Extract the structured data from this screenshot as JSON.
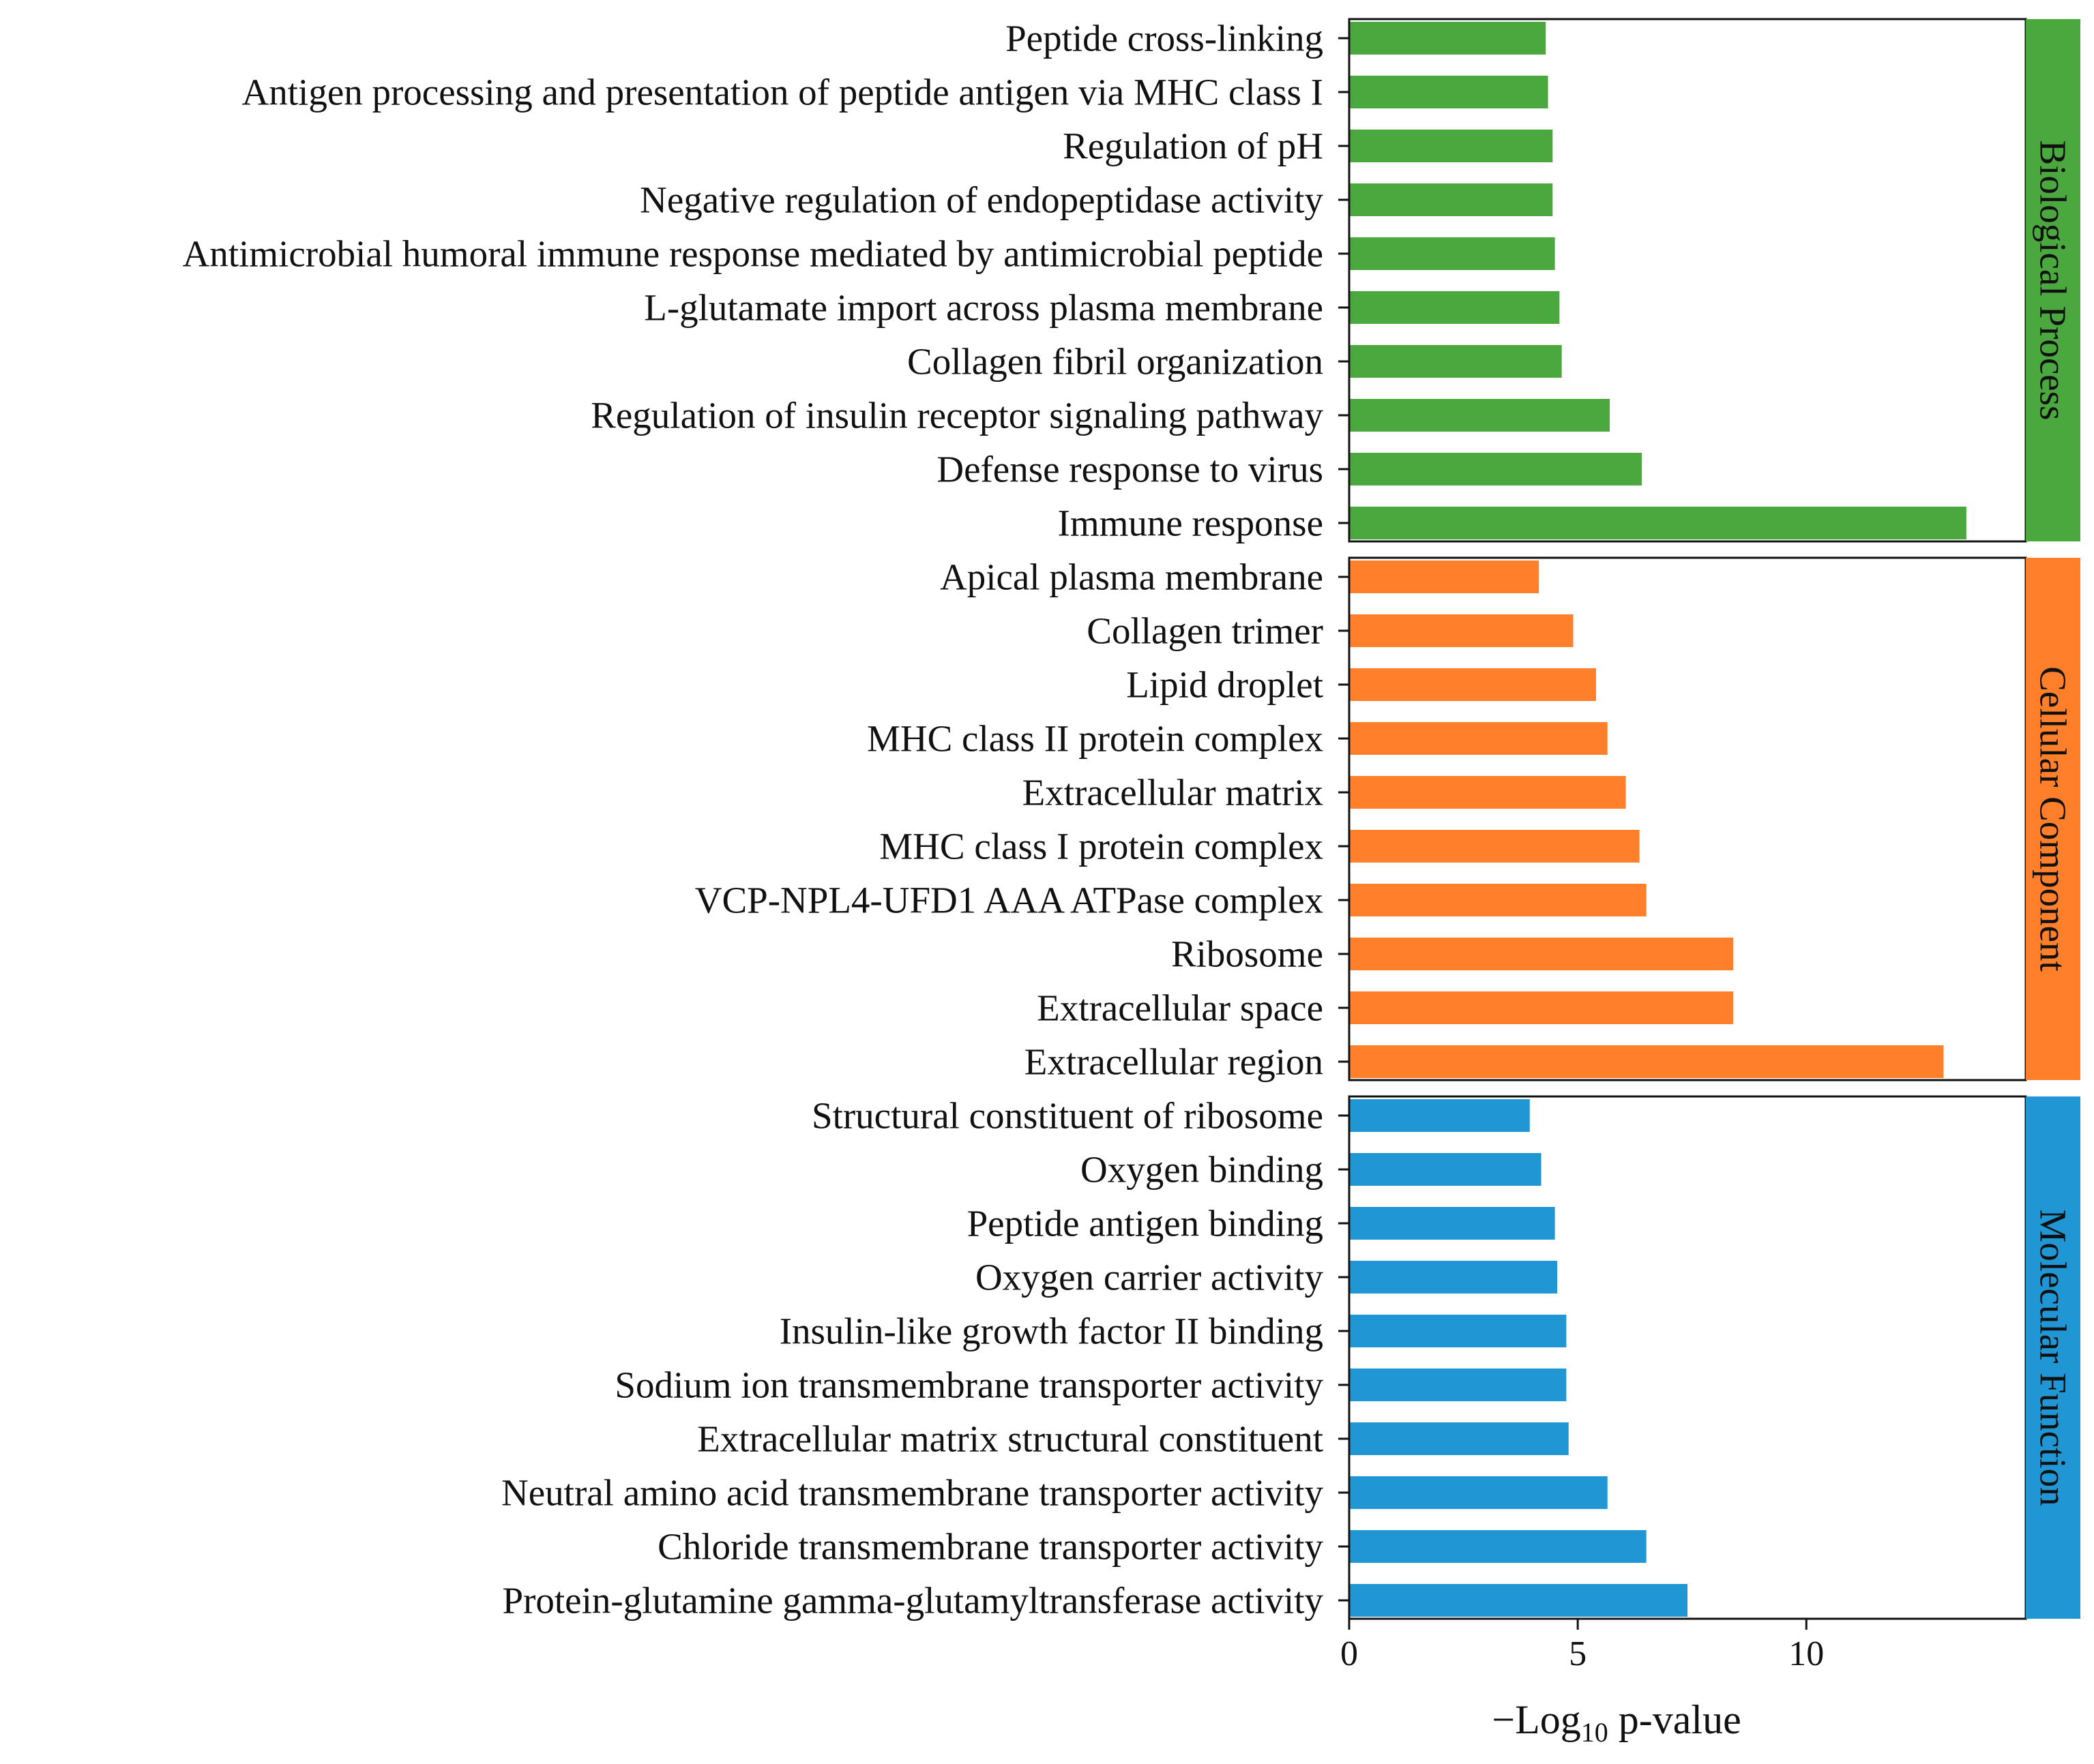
{
  "colors": {
    "biological_process": "#4aa83f",
    "cellular_component": "#ff7f2a",
    "molecular_function": "#2196d4",
    "frame": "#111111",
    "text": "#111111"
  },
  "chart_data": {
    "type": "bar",
    "orientation": "horizontal",
    "xlabel": {
      "prefix": "−Log",
      "subscript": "10",
      "suffix": " p-value"
    },
    "xlim": [
      0,
      14.8
    ],
    "xticks": [
      0,
      5,
      10
    ],
    "grid": false,
    "legend": "none",
    "panels": [
      {
        "name": "Biological Process",
        "color_key": "biological_process",
        "categories": [
          "Peptide cross-linking",
          "Antigen processing and presentation of peptide antigen via MHC class I",
          "Regulation of pH",
          "Negative regulation of endopeptidase activity",
          "Antimicrobial humoral immune response mediated by antimicrobial peptide",
          "L-glutamate import across plasma membrane",
          "Collagen fibril organization",
          "Regulation of insulin receptor signaling pathway",
          "Defense response to virus",
          "Immune response"
        ],
        "values": [
          4.3,
          4.35,
          4.45,
          4.45,
          4.5,
          4.6,
          4.65,
          5.7,
          6.4,
          13.5
        ]
      },
      {
        "name": "Cellular Component",
        "color_key": "cellular_component",
        "categories": [
          "Apical plasma membrane",
          "Collagen trimer",
          "Lipid droplet",
          "MHC class II protein complex",
          "Extracellular matrix",
          "MHC class I protein complex",
          "VCP-NPL4-UFD1 AAA ATPase complex",
          "Ribosome",
          "Extracellular space",
          "Extracellular region"
        ],
        "values": [
          4.15,
          4.9,
          5.4,
          5.65,
          6.05,
          6.35,
          6.5,
          8.4,
          8.4,
          13.0
        ]
      },
      {
        "name": "Molecular Function",
        "color_key": "molecular_function",
        "categories": [
          "Structural constituent of ribosome",
          "Oxygen binding",
          "Peptide antigen binding",
          "Oxygen carrier activity",
          "Insulin-like growth factor II binding",
          "Sodium ion transmembrane transporter activity",
          "Extracellular matrix structural constituent",
          "Neutral amino acid transmembrane transporter activity",
          "Chloride transmembrane transporter activity",
          "Protein-glutamine gamma-glutamyltransferase activity"
        ],
        "values": [
          3.95,
          4.2,
          4.5,
          4.55,
          4.75,
          4.75,
          4.8,
          5.65,
          6.5,
          7.4
        ]
      }
    ]
  }
}
